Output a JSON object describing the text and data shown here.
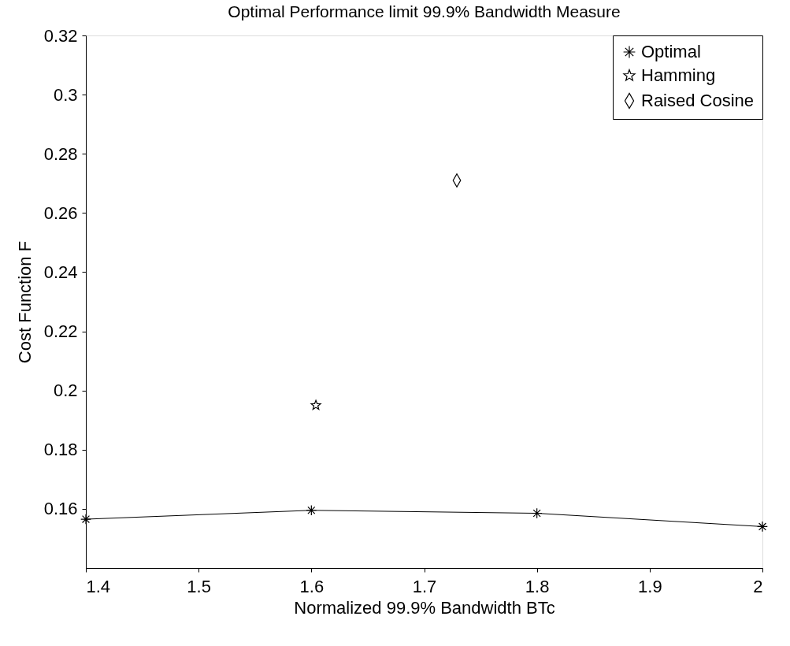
{
  "chart_data": {
    "type": "line",
    "title": "Optimal Performance limit 99.9% Bandwidth Measure",
    "xlabel": "Normalized 99.9% Bandwidth BTc",
    "ylabel": "Cost Function F",
    "xlim": [
      1.4,
      2
    ],
    "xticks": [
      1.4,
      1.5,
      1.6,
      1.7,
      1.8,
      1.9,
      2
    ],
    "ylim": [
      0.14,
      0.32
    ],
    "yticks": [
      0.16,
      0.18,
      0.2,
      0.22,
      0.24,
      0.26,
      0.28,
      0.3,
      0.32
    ],
    "grid": false,
    "legend": "top right",
    "series": [
      {
        "name": "Optimal",
        "marker": "cross",
        "line_style": "solid",
        "color": "#000000",
        "x": [
          1.4,
          1.6,
          1.8,
          2
        ],
        "values": [
          0.1565,
          0.1595,
          0.1585,
          0.154
        ]
      },
      {
        "name": "Hamming",
        "type": "scatter",
        "marker": "star",
        "color": "#000000",
        "x": [
          1.604
        ],
        "values": [
          0.195
        ]
      },
      {
        "name": "Raised Cosine",
        "type": "scatter",
        "marker": "diamond",
        "color": "#000000",
        "x": [
          1.729
        ],
        "values": [
          0.271
        ]
      }
    ]
  }
}
